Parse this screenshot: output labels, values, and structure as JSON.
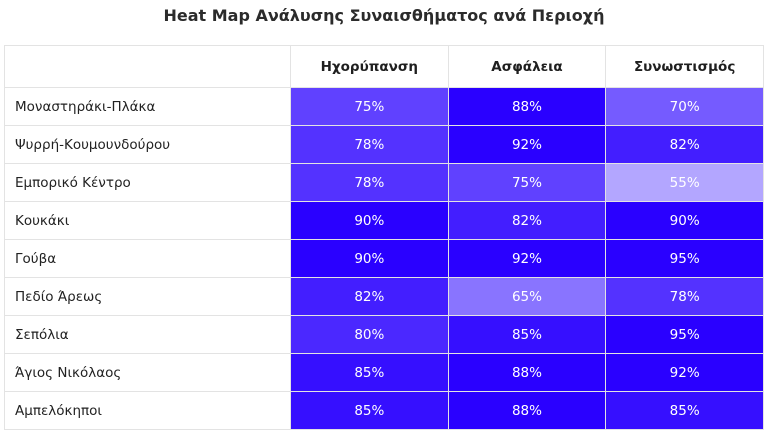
{
  "chart_data": {
    "type": "heatmap",
    "title": "Heat Map Ανάλυσης Συναισθήματος ανά Περιοχή",
    "columns": [
      "Ηχορύπανση",
      "Ασφάλεια",
      "Συνωστισμός"
    ],
    "rows": [
      {
        "name": "Μοναστηράκι-Πλάκα",
        "values": [
          75,
          88,
          70
        ]
      },
      {
        "name": "Ψυρρή-Κουμουνδούρου",
        "values": [
          78,
          92,
          82
        ]
      },
      {
        "name": "Εμπορικό Κέντρο",
        "values": [
          78,
          75,
          55
        ]
      },
      {
        "name": "Κουκάκι",
        "values": [
          90,
          82,
          90
        ]
      },
      {
        "name": "Γούβα",
        "values": [
          90,
          92,
          95
        ]
      },
      {
        "name": "Πεδίο Άρεως",
        "values": [
          82,
          65,
          78
        ]
      },
      {
        "name": "Σεπόλια",
        "values": [
          80,
          85,
          95
        ]
      },
      {
        "name": "Άγιος Νικόλαος",
        "values": [
          85,
          88,
          92
        ]
      },
      {
        "name": "Αμπελόκηποι",
        "values": [
          85,
          88,
          85
        ]
      }
    ],
    "value_suffix": "%",
    "color_low": "#b3a6ff",
    "color_high": "#2a00ff"
  }
}
